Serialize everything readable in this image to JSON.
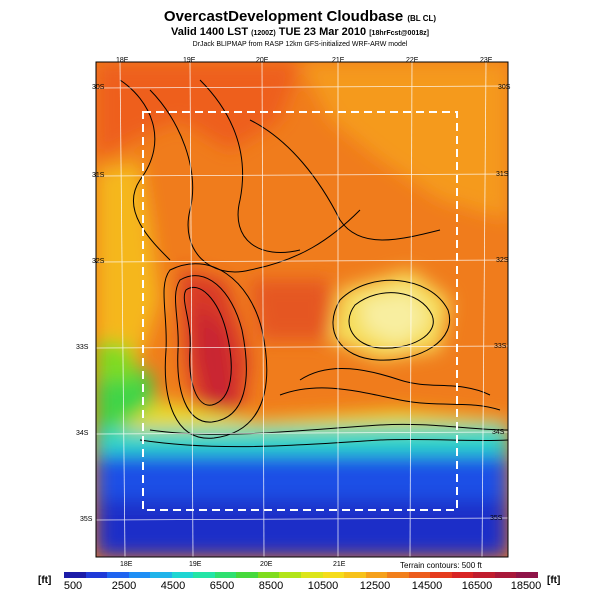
{
  "header": {
    "title": "OvercastDevelopment Cloudbase",
    "title_tag": "(BL CL)",
    "valid_text": "Valid 1400 LST",
    "valid_code": "(1200Z)",
    "valid_date": "TUE 23 Mar 2010",
    "forecast": "[18hrFcst@0018z]",
    "credits": "DrJack BLIPMAP from RASP 12km GFS-initialized WRF-ARW model"
  },
  "map": {
    "lon_labels_top": [
      "18E",
      "19E",
      "20E",
      "21E",
      "22E",
      "23E"
    ],
    "lon_labels_bottom": [
      "18E",
      "19E",
      "20E",
      "21E"
    ],
    "lat_labels_left": [
      "30S",
      "31S",
      "32S",
      "33S",
      "34S",
      "35S"
    ],
    "lat_labels_right": [
      "30S",
      "31S",
      "32S",
      "33S",
      "34S",
      "35S"
    ],
    "terrain_note": "Terrain contours: 500 ft"
  },
  "colorbar": {
    "unit_left": "[ft]",
    "unit_right": "[ft]",
    "tick_labels": [
      "500",
      "2500",
      "4500",
      "6500",
      "8500",
      "10500",
      "12500",
      "14500",
      "16500",
      "18500"
    ],
    "colors": [
      "#1b1ba8",
      "#1f3ad8",
      "#1f64f0",
      "#1e8ef5",
      "#20b4ea",
      "#1ed6d3",
      "#23e5a6",
      "#2fe070",
      "#46d93c",
      "#7fdc1e",
      "#b2e419",
      "#dce51a",
      "#f5dc1b",
      "#f7c21a",
      "#f5a01b",
      "#f17f1c",
      "#ec5c1d",
      "#e53b1e",
      "#d82424",
      "#c01d2e",
      "#a8183a",
      "#8f1448"
    ]
  }
}
